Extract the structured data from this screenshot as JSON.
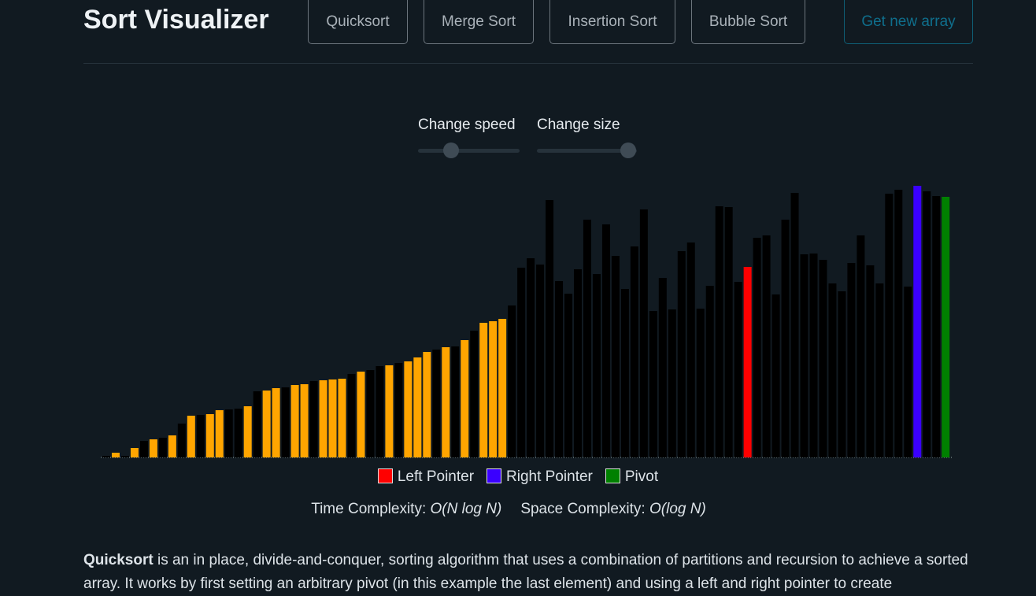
{
  "header": {
    "title": "Sort Visualizer",
    "buttons": [
      "Quicksort",
      "Merge Sort",
      "Insertion Sort",
      "Bubble Sort"
    ],
    "new_array_button": "Get new array"
  },
  "controls": {
    "speed_label": "Change speed",
    "size_label": "Change size"
  },
  "chart_data": {
    "type": "bar",
    "values": [
      2,
      6,
      2,
      12,
      21,
      23,
      25,
      28,
      43,
      53,
      54,
      55,
      60,
      61,
      62,
      65,
      84,
      85,
      88,
      89,
      92,
      93,
      97,
      98,
      99,
      100,
      106,
      109,
      111,
      116,
      117,
      120,
      122,
      127,
      134,
      137,
      140,
      141,
      149,
      161,
      171,
      173,
      176,
      193,
      241,
      253,
      245,
      327,
      224,
      208,
      239,
      302,
      233,
      296,
      256,
      214,
      268,
      315,
      186,
      228,
      188,
      262,
      273,
      189,
      218,
      319,
      318,
      223,
      242,
      279,
      282,
      207,
      302,
      336,
      258,
      259,
      251,
      221,
      211,
      247,
      282,
      244,
      221,
      335,
      340,
      217,
      345,
      338,
      332,
      331
    ],
    "colors": [
      "#000000",
      "#ffa500",
      "#000000",
      "#ffa500",
      "#000000",
      "#ffa500",
      "#000000",
      "#ffa500",
      "#000000",
      "#ffa500",
      "#000000",
      "#ffa500",
      "#ffa500",
      "#000000",
      "#000000",
      "#ffa500",
      "#000000",
      "#ffa500",
      "#ffa500",
      "#000000",
      "#ffa500",
      "#ffa500",
      "#000000",
      "#ffa500",
      "#ffa500",
      "#ffa500",
      "#000000",
      "#ffa500",
      "#000000",
      "#000000",
      "#ffa500",
      "#000000",
      "#ffa500",
      "#ffa500",
      "#ffa500",
      "#000000",
      "#ffa500",
      "#000000",
      "#ffa500",
      "#000000",
      "#ffa500",
      "#ffa500",
      "#ffa500",
      "#000000",
      "#000000",
      "#000000",
      "#000000",
      "#000000",
      "#000000",
      "#000000",
      "#000000",
      "#000000",
      "#000000",
      "#000000",
      "#000000",
      "#000000",
      "#000000",
      "#000000",
      "#000000",
      "#000000",
      "#000000",
      "#000000",
      "#000000",
      "#000000",
      "#000000",
      "#000000",
      "#000000",
      "#000000",
      "#ff0000",
      "#000000",
      "#000000",
      "#000000",
      "#000000",
      "#000000",
      "#000000",
      "#000000",
      "#000000",
      "#000000",
      "#000000",
      "#000000",
      "#000000",
      "#000000",
      "#000000",
      "#000000",
      "#000000",
      "#000000",
      "#3a00ff",
      "#000000",
      "#000000",
      "#008000"
    ]
  },
  "legend": [
    {
      "name": "Left Pointer",
      "color": "#ff0000"
    },
    {
      "name": "Right Pointer",
      "color": "#3a00ff"
    },
    {
      "name": "Pivot",
      "color": "#008000"
    }
  ],
  "complexity": {
    "time_label": "Time Complexity:",
    "time_value": "O(N log N)",
    "space_label": "Space Complexity:",
    "space_value": "O(log N)"
  },
  "description": {
    "term": "Quicksort",
    "text": " is an in place, divide-and-conquer, sorting algorithm that uses a combination of partitions and recursion to achieve a sorted array. It works by first setting an arbitrary pivot (in this example the last element) and using a left and right pointer to create"
  }
}
